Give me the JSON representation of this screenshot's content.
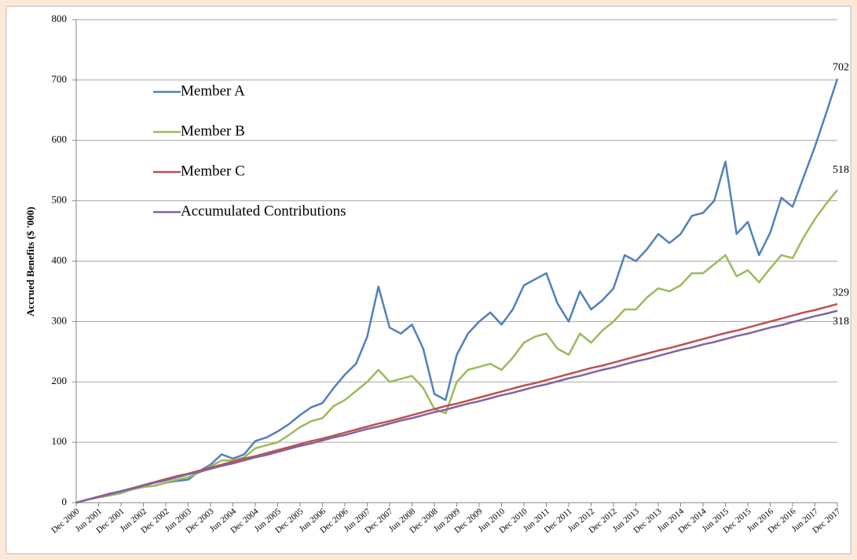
{
  "chart_data": {
    "type": "line",
    "y_label": "Accrued Benefits ($ '000)",
    "categories": [
      "Dec 2000",
      null,
      "Jun 2001",
      null,
      "Dec 2001",
      null,
      "Jun 2002",
      null,
      "Dec 2002",
      null,
      "Jun 2003",
      null,
      "Dec 2003",
      null,
      "Jun 2004",
      null,
      "Dec 2004",
      null,
      "Jun 2005",
      null,
      "Dec 2005",
      null,
      "Jun 2006",
      null,
      "Dec 2006",
      null,
      "Jun 2007",
      null,
      "Dec 2007",
      null,
      "Jun 2008",
      null,
      "Dec 2008",
      null,
      "Jun 2009",
      null,
      "Dec 2009",
      null,
      "Jun 2010",
      null,
      "Dec 2010",
      null,
      "Jun 2011",
      null,
      "Dec 2011",
      null,
      "Jun 2012",
      null,
      "Dec 2012",
      null,
      "Jun 2013",
      null,
      "Dec 2013",
      null,
      "Jun 2014",
      null,
      "Dec 2014",
      null,
      "Jun 2015",
      null,
      "Dec 2015",
      null,
      "Jun 2016",
      null,
      "Dec 2016",
      null,
      "Jun 2017",
      null,
      "Dec 2017"
    ],
    "series": [
      {
        "name": "Member A",
        "color": "#4f81bd",
        "values": [
          0,
          5,
          10,
          12,
          16,
          22,
          26,
          28,
          33,
          36,
          38,
          52,
          63,
          80,
          73,
          80,
          102,
          108,
          118,
          130,
          145,
          158,
          165,
          190,
          212,
          230,
          275,
          358,
          290,
          280,
          295,
          255,
          180,
          170,
          245,
          280,
          300,
          315,
          295,
          320,
          360,
          370,
          380,
          330,
          300,
          350,
          320,
          335,
          355,
          410,
          400,
          420,
          445,
          430,
          445,
          475,
          480,
          500,
          565,
          445,
          465,
          410,
          447,
          505,
          490,
          540,
          590,
          645,
          702
        ]
      },
      {
        "name": "Member B",
        "color": "#9bbb59",
        "values": [
          0,
          5,
          9,
          12,
          17,
          22,
          26,
          28,
          33,
          38,
          42,
          50,
          60,
          70,
          70,
          75,
          90,
          95,
          100,
          112,
          125,
          135,
          140,
          160,
          170,
          185,
          200,
          220,
          200,
          205,
          210,
          190,
          155,
          148,
          200,
          220,
          225,
          230,
          220,
          240,
          265,
          275,
          280,
          255,
          245,
          280,
          265,
          285,
          300,
          320,
          320,
          340,
          355,
          350,
          360,
          380,
          380,
          395,
          410,
          375,
          385,
          365,
          388,
          410,
          405,
          440,
          470,
          495,
          518
        ]
      },
      {
        "name": "Member C",
        "color": "#c0504d",
        "values": [
          0,
          5,
          10,
          15,
          19,
          24,
          29,
          34,
          39,
          44,
          48,
          53,
          58,
          63,
          68,
          73,
          77,
          82,
          87,
          92,
          97,
          102,
          106,
          111,
          116,
          121,
          126,
          131,
          135,
          140,
          145,
          150,
          155,
          160,
          164,
          169,
          174,
          179,
          184,
          189,
          194,
          198,
          203,
          208,
          213,
          218,
          223,
          227,
          232,
          237,
          242,
          247,
          252,
          256,
          261,
          266,
          271,
          276,
          281,
          285,
          290,
          295,
          300,
          305,
          310,
          315,
          319,
          324,
          329
        ]
      },
      {
        "name": "Accumulated Contributions",
        "color": "#8064a2",
        "values": [
          0,
          5,
          9,
          14,
          19,
          23,
          28,
          33,
          37,
          42,
          47,
          51,
          56,
          61,
          65,
          70,
          75,
          79,
          84,
          89,
          94,
          98,
          103,
          108,
          112,
          117,
          122,
          126,
          131,
          136,
          140,
          145,
          150,
          154,
          159,
          164,
          168,
          173,
          178,
          182,
          187,
          192,
          196,
          201,
          206,
          210,
          215,
          220,
          224,
          229,
          234,
          238,
          243,
          248,
          253,
          257,
          262,
          266,
          271,
          276,
          280,
          285,
          290,
          294,
          299,
          304,
          309,
          313,
          318
        ]
      }
    ],
    "ylim": [
      0,
      800
    ],
    "yticks": [
      0,
      100,
      200,
      300,
      400,
      500,
      600,
      700,
      800
    ],
    "grid": true
  }
}
